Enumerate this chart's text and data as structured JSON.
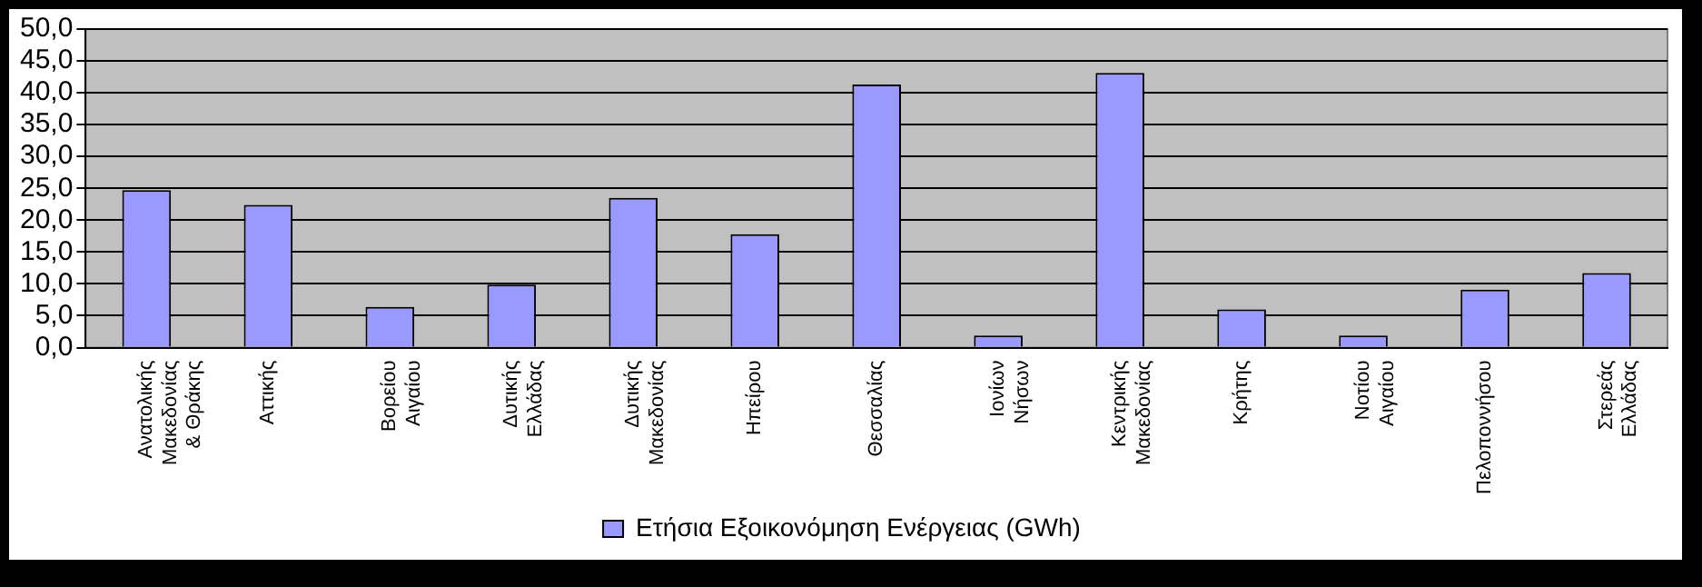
{
  "chart_data": {
    "type": "bar",
    "categories": [
      "Ανατολικής Μακεδονίας & Θράκης",
      "Αττικής",
      "Βορείου Αιγαίου",
      "Δυτικής Ελλάδας",
      "Δυτικής Μακεδονίας",
      "Ηπείρου",
      "Θεσσαλίας",
      "Ιονίων Νήσων",
      "Κεντρικής Μακεδονίας",
      "Κρήτης",
      "Νοτίου Αιγαίου",
      "Πελοποννήσου",
      "Στερεάς Ελλάδας"
    ],
    "series": [
      {
        "name": "Ετήσια Εξοικονόμηση Ενέργειας (GWh)",
        "color": "#9999ff",
        "values": [
          24.7,
          22.4,
          6.4,
          9.9,
          23.5,
          17.8,
          41.3,
          1.9,
          43.1,
          6.0,
          1.9,
          9.1,
          11.7
        ]
      }
    ],
    "ylim": [
      0,
      50
    ],
    "yticks": [
      {
        "value": 0,
        "label": "0,0"
      },
      {
        "value": 5,
        "label": "5,0"
      },
      {
        "value": 10,
        "label": "10,0"
      },
      {
        "value": 15,
        "label": "15,0"
      },
      {
        "value": 20,
        "label": "20,0"
      },
      {
        "value": 25,
        "label": "25,0"
      },
      {
        "value": 30,
        "label": "30,0"
      },
      {
        "value": 35,
        "label": "35,0"
      },
      {
        "value": 40,
        "label": "40,0"
      },
      {
        "value": 45,
        "label": "45,0"
      },
      {
        "value": 50,
        "label": "50,0"
      }
    ],
    "grid": "y",
    "legend": "bottom"
  }
}
